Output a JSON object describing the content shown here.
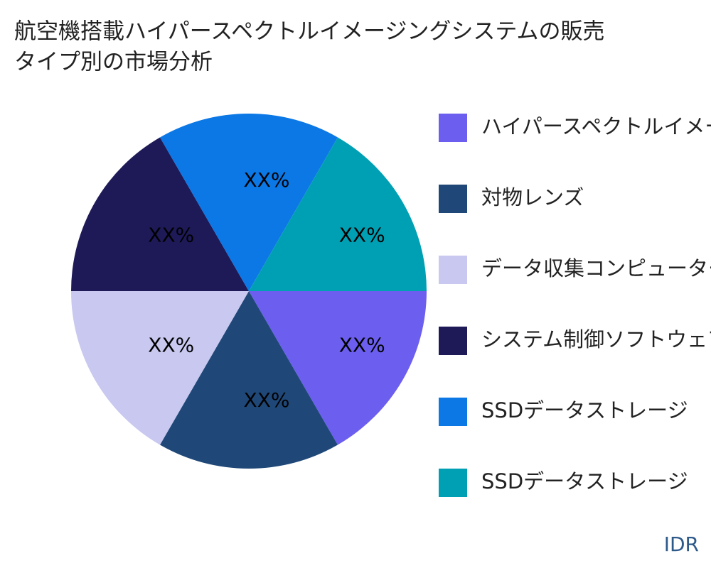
{
  "chart_data": {
    "type": "pie",
    "title": [
      "航空機搭載ハイパースペクトルイメージングシステムの販売",
      "タイプ別の市場分析"
    ],
    "categories": [
      "ハイパースペクトルイメージャー",
      "対物レンズ",
      "データ収集コンピューター",
      "システム制御ソフトウェア",
      "SSDデータストレージ",
      "SSDデータストレージ"
    ],
    "values": [
      16.67,
      16.67,
      16.67,
      16.67,
      16.67,
      16.67
    ],
    "value_labels": [
      "XX%",
      "XX%",
      "XX%",
      "XX%",
      "XX%",
      "XX%"
    ],
    "colors": [
      "#6c5ff0",
      "#1f4878",
      "#c8c8f0",
      "#1e1a58",
      "#0b78e6",
      "#00a0b4"
    ],
    "legend": "right",
    "watermark": "IDR"
  }
}
